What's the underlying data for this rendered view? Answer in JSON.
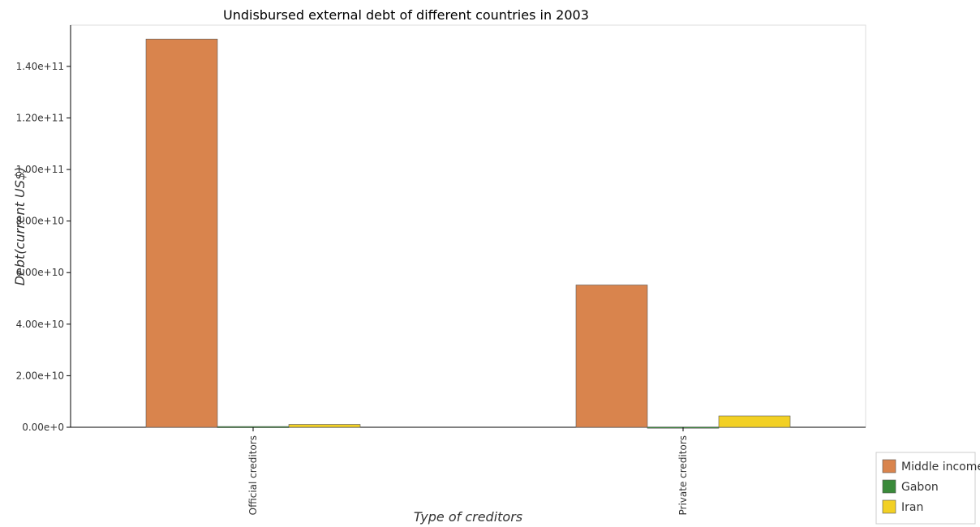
{
  "chart_data": {
    "type": "bar",
    "title": "Undisbursed external debt of different countries in 2003",
    "xlabel": "Type of creditors",
    "ylabel": "Debt(current US$)",
    "categories": [
      "Official creditors",
      "Private creditors"
    ],
    "series": [
      {
        "name": "Middle income",
        "color": "#d9844d",
        "values": [
          150600000000,
          55200000000
        ]
      },
      {
        "name": "Gabon",
        "color": "#3a8a3a",
        "values": [
          300000000,
          100000000
        ]
      },
      {
        "name": "Iran",
        "color": "#f2d024",
        "values": [
          1100000000,
          4400000000
        ]
      }
    ],
    "yticks": [
      "0.00e+0",
      "2.00e+10",
      "4.00e+10",
      "6.00e+10",
      "8.00e+10",
      "1.00e+11",
      "1.20e+11",
      "1.40e+11"
    ],
    "ytick_values": [
      0,
      20000000000,
      40000000000,
      60000000000,
      80000000000,
      100000000000,
      120000000000,
      140000000000
    ],
    "ylim": [
      0,
      156000000000
    ],
    "grid": false,
    "legend_position": "bottom-right"
  }
}
